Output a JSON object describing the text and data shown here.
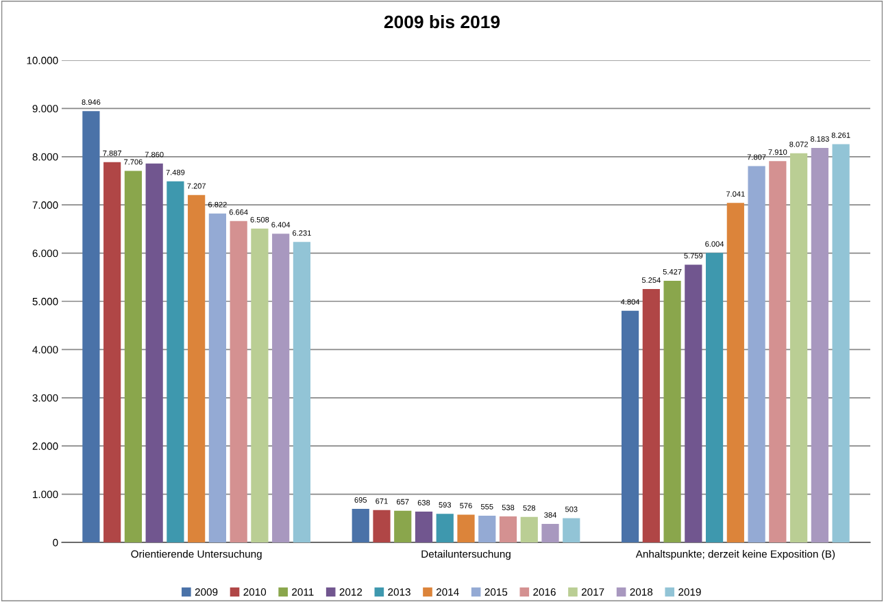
{
  "chart_data": {
    "type": "bar",
    "title": "2009 bis 2019",
    "categories": [
      "Orientierende Untersuchung",
      "Detailuntersuchung",
      "Anhaltspunkte; derzeit keine Exposition (B)"
    ],
    "series": [
      {
        "name": "2009",
        "color": "#4a72a8",
        "values": [
          8946,
          695,
          4804
        ],
        "value_labels": [
          "8.946",
          "695",
          "4.804"
        ]
      },
      {
        "name": "2010",
        "color": "#b04646",
        "values": [
          7887,
          671,
          5254
        ],
        "value_labels": [
          "7.887",
          "671",
          "5.254"
        ]
      },
      {
        "name": "2011",
        "color": "#8aa64c",
        "values": [
          7706,
          657,
          5427
        ],
        "value_labels": [
          "7.706",
          "657",
          "5.427"
        ]
      },
      {
        "name": "2012",
        "color": "#71568f",
        "values": [
          7860,
          638,
          5759
        ],
        "value_labels": [
          "7.860",
          "638",
          "5.759"
        ]
      },
      {
        "name": "2013",
        "color": "#3e98ae",
        "values": [
          7489,
          593,
          6004
        ],
        "value_labels": [
          "7.489",
          "593",
          "6.004"
        ]
      },
      {
        "name": "2014",
        "color": "#dc843a",
        "values": [
          7207,
          576,
          7041
        ],
        "value_labels": [
          "7.207",
          "576",
          "7.041"
        ]
      },
      {
        "name": "2015",
        "color": "#94aad4",
        "values": [
          6822,
          555,
          7807
        ],
        "value_labels": [
          "6.822",
          "555",
          "7.807"
        ]
      },
      {
        "name": "2016",
        "color": "#d49191",
        "values": [
          6664,
          538,
          7910
        ],
        "value_labels": [
          "6.664",
          "538",
          "7.910"
        ]
      },
      {
        "name": "2017",
        "color": "#bace94",
        "values": [
          6508,
          528,
          8072
        ],
        "value_labels": [
          "6.508",
          "528",
          "8.072"
        ]
      },
      {
        "name": "2018",
        "color": "#a898bf",
        "values": [
          6404,
          384,
          8183
        ],
        "value_labels": [
          "6.404",
          "384",
          "8.183"
        ]
      },
      {
        "name": "2019",
        "color": "#92c4d6",
        "values": [
          6231,
          503,
          8261
        ],
        "value_labels": [
          "6.231",
          "503",
          "8.261"
        ]
      }
    ],
    "ylim": [
      0,
      10000
    ],
    "yticks": [
      0,
      {
        "value": 1000,
        "label": "1.000"
      },
      {
        "value": 2000,
        "label": "2.000"
      },
      {
        "value": 3000,
        "label": "3.000"
      },
      {
        "value": 4000,
        "label": "4.000"
      },
      {
        "value": 5000,
        "label": "5.000"
      },
      {
        "value": 6000,
        "label": "6.000"
      },
      {
        "value": 7000,
        "label": "7.000"
      },
      {
        "value": 8000,
        "label": "8.000"
      },
      {
        "value": 9000,
        "label": "9.000"
      },
      {
        "value": 10000,
        "label": "10.000"
      }
    ],
    "grid": "y",
    "legend": "bottom"
  }
}
